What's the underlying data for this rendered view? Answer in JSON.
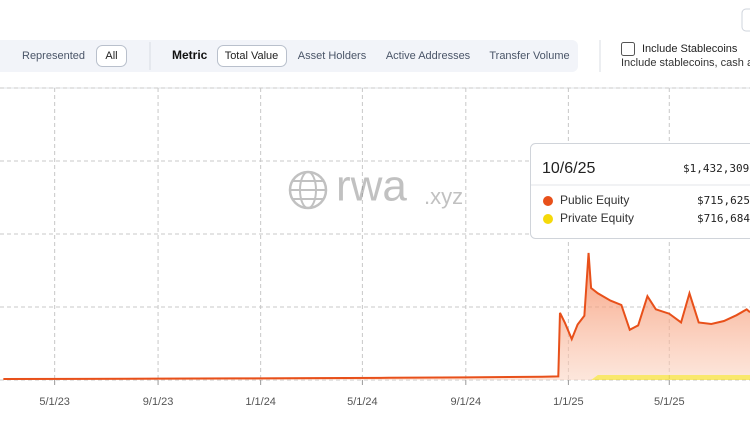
{
  "toolbar": {
    "represented": "Represented",
    "all": "All",
    "metric_label": "Metric",
    "metric_options": [
      "Total Value",
      "Asset Holders",
      "Active Addresses",
      "Transfer Volume"
    ],
    "stablecoins_label": "Include Stablecoins",
    "stablecoins_description": "Include stablecoins, cash ar"
  },
  "watermark": {
    "name": "rwa",
    "suffix": ".xyz"
  },
  "tooltip": {
    "date": "10/6/25",
    "total": "$1,432,309",
    "values": [
      "$715,625",
      "$716,684"
    ]
  },
  "chart_data": {
    "type": "area",
    "stacked": true,
    "grid": true,
    "x": [
      "3/1/23",
      "6/1/23",
      "9/1/23",
      "12/1/23",
      "3/1/24",
      "6/1/24",
      "9/1/24",
      "12/1/24",
      "12/20/24",
      "12/22/24",
      "12/28/24",
      "1/5/25",
      "1/12/25",
      "1/20/25",
      "1/25/25",
      "1/28/25",
      "2/5/25",
      "2/20/25",
      "3/5/25",
      "3/15/25",
      "3/25/25",
      "4/5/25",
      "4/15/25",
      "5/1/25",
      "5/15/25",
      "5/25/25",
      "6/5/25",
      "6/20/25",
      "7/5/25",
      "7/20/25",
      "8/1/25",
      "8/5/25"
    ],
    "series": [
      {
        "name": "Public Equity",
        "color": "#e8501a",
        "values": [
          70000,
          80000,
          90000,
          110000,
          130000,
          150000,
          180000,
          220000,
          250000,
          4600000,
          3900000,
          2800000,
          3800000,
          4400000,
          8700000,
          6300000,
          5600000,
          5100000,
          4800000,
          3100000,
          3400000,
          5400000,
          4500000,
          4200000,
          3600000,
          5600000,
          3600000,
          3500000,
          3700000,
          4100000,
          4500000,
          4300000
        ]
      },
      {
        "name": "Private Equity",
        "color": "#f5d90a",
        "values": [
          0,
          0,
          0,
          0,
          0,
          0,
          0,
          0,
          0,
          0,
          0,
          0,
          0,
          0,
          0,
          0,
          340000,
          340000,
          340000,
          340000,
          340000,
          340000,
          340000,
          340000,
          340000,
          340000,
          340000,
          340000,
          340000,
          340000,
          340000,
          340000
        ]
      }
    ],
    "xlim": [
      "2/25/23",
      "8/5/25"
    ],
    "xticks": [
      "5/1/23",
      "9/1/23",
      "1/1/24",
      "5/1/24",
      "9/1/24",
      "1/1/25",
      "5/1/25"
    ],
    "ylim": [
      0,
      20000000
    ],
    "yticks": [
      0,
      5000000,
      10000000,
      15000000,
      20000000
    ]
  }
}
